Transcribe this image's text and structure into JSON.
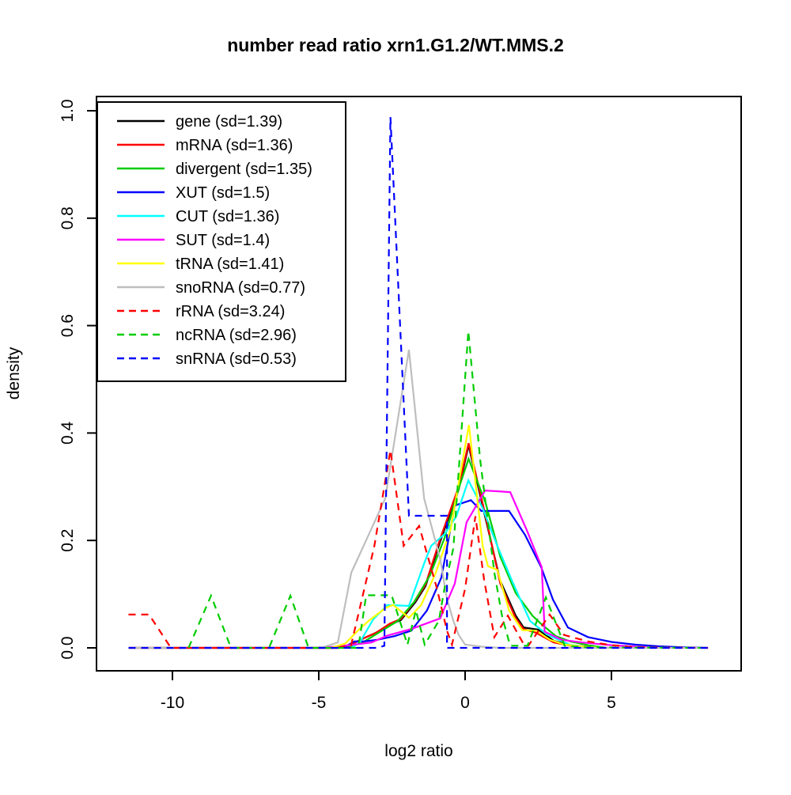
{
  "title": "number read ratio xrn1.G1.2/WT.MMS.2",
  "chart_data": {
    "type": "line",
    "title": "number read ratio xrn1.G1.2/WT.MMS.2",
    "xlabel": "log2 ratio",
    "ylabel": "density",
    "x_ticks": [
      -10,
      -5,
      0,
      5
    ],
    "y_ticks": [
      "0.0",
      "0.2",
      "0.4",
      "0.6",
      "0.8",
      "1.0"
    ],
    "xlim": [
      -12.6,
      9.4
    ],
    "ylim": [
      0,
      1.07
    ],
    "grid": false,
    "legend_position": "top-left",
    "series": [
      {
        "name": "gene",
        "label": "gene (sd=1.39)",
        "color": "#000000",
        "dash": false,
        "points": [
          [
            -11.5,
            0
          ],
          [
            -4.3,
            0
          ],
          [
            -3.9,
            0.006
          ],
          [
            -3.46,
            0.018
          ],
          [
            -3.05,
            0.028
          ],
          [
            -2.57,
            0.043
          ],
          [
            -2.19,
            0.052
          ],
          [
            -1.7,
            0.085
          ],
          [
            -1.35,
            0.115
          ],
          [
            -0.84,
            0.2
          ],
          [
            -0.22,
            0.295
          ],
          [
            0.12,
            0.377
          ],
          [
            0.66,
            0.25
          ],
          [
            1.2,
            0.125
          ],
          [
            1.73,
            0.06
          ],
          [
            2.0,
            0.038
          ],
          [
            2.5,
            0.034
          ],
          [
            3.03,
            0.013
          ],
          [
            3.6,
            0.005
          ],
          [
            4.2,
            0.002
          ],
          [
            4.8,
            0
          ]
        ]
      },
      {
        "name": "mRNA",
        "label": "mRNA (sd=1.36)",
        "color": "#FF0000",
        "dash": false,
        "points": [
          [
            -11.5,
            0
          ],
          [
            -4.3,
            0
          ],
          [
            -3.9,
            0.006
          ],
          [
            -3.46,
            0.018
          ],
          [
            -3.05,
            0.028
          ],
          [
            -2.57,
            0.045
          ],
          [
            -2.19,
            0.054
          ],
          [
            -1.7,
            0.088
          ],
          [
            -1.35,
            0.118
          ],
          [
            -0.84,
            0.205
          ],
          [
            -0.22,
            0.3
          ],
          [
            0.12,
            0.381
          ],
          [
            0.66,
            0.255
          ],
          [
            1.2,
            0.12
          ],
          [
            1.73,
            0.055
          ],
          [
            2.0,
            0.035
          ],
          [
            2.43,
            0.028
          ],
          [
            3.03,
            0.01
          ],
          [
            3.6,
            0.004
          ],
          [
            4.3,
            0.001
          ],
          [
            4.9,
            0
          ]
        ]
      },
      {
        "name": "divergent",
        "label": "divergent (sd=1.35)",
        "color": "#00CD00",
        "dash": false,
        "points": [
          [
            -4.1,
            0
          ],
          [
            -3.5,
            0.01
          ],
          [
            -2.9,
            0.03
          ],
          [
            -2.3,
            0.05
          ],
          [
            -1.75,
            0.085
          ],
          [
            -1.2,
            0.135
          ],
          [
            -0.7,
            0.205
          ],
          [
            -0.2,
            0.3
          ],
          [
            0.12,
            0.352
          ],
          [
            0.7,
            0.27
          ],
          [
            1.2,
            0.17
          ],
          [
            1.73,
            0.102
          ],
          [
            2.3,
            0.06
          ],
          [
            2.57,
            0.046
          ],
          [
            3.1,
            0.022
          ],
          [
            3.6,
            0.012
          ],
          [
            4.2,
            0.005
          ],
          [
            4.8,
            0
          ]
        ]
      },
      {
        "name": "XUT",
        "label": "XUT (sd=1.5)",
        "color": "#0000FF",
        "dash": false,
        "points": [
          [
            -4.6,
            0
          ],
          [
            -4.1,
            0.002
          ],
          [
            -3.78,
            0.012
          ],
          [
            -3.46,
            0.012
          ],
          [
            -3.0,
            0.015
          ],
          [
            -2.4,
            0.022
          ],
          [
            -1.84,
            0.032
          ],
          [
            -1.3,
            0.07
          ],
          [
            -0.81,
            0.131
          ],
          [
            -0.35,
            0.265
          ],
          [
            0.2,
            0.275
          ],
          [
            0.55,
            0.255
          ],
          [
            1.5,
            0.255
          ],
          [
            2.05,
            0.21
          ],
          [
            2.6,
            0.15
          ],
          [
            3.0,
            0.09
          ],
          [
            3.51,
            0.038
          ],
          [
            4.2,
            0.02
          ],
          [
            5.0,
            0.011
          ],
          [
            5.8,
            0.006
          ],
          [
            6.6,
            0.003
          ],
          [
            7.5,
            0.001
          ],
          [
            8.3,
            0
          ]
        ]
      },
      {
        "name": "CUT",
        "label": "CUT (sd=1.36)",
        "color": "#00FFFF",
        "dash": false,
        "points": [
          [
            -3.9,
            0
          ],
          [
            -3.6,
            0.01
          ],
          [
            -3.14,
            0.053
          ],
          [
            -2.65,
            0.08
          ],
          [
            -1.92,
            0.078
          ],
          [
            -1.38,
            0.16
          ],
          [
            -1.16,
            0.19
          ],
          [
            -0.7,
            0.212
          ],
          [
            -0.3,
            0.245
          ],
          [
            0.11,
            0.312
          ],
          [
            0.6,
            0.26
          ],
          [
            1.1,
            0.19
          ],
          [
            1.6,
            0.125
          ],
          [
            2.22,
            0.05
          ],
          [
            2.8,
            0.025
          ],
          [
            3.57,
            0.006
          ],
          [
            4.3,
            0
          ]
        ]
      },
      {
        "name": "SUT",
        "label": "SUT (sd=1.4)",
        "color": "#FF00FF",
        "dash": false,
        "points": [
          [
            -4.9,
            0
          ],
          [
            -4.3,
            0.003
          ],
          [
            -3.8,
            0.006
          ],
          [
            -3.2,
            0.01
          ],
          [
            -2.65,
            0.023
          ],
          [
            -1.84,
            0.035
          ],
          [
            -0.85,
            0.055
          ],
          [
            -0.35,
            0.12
          ],
          [
            0.05,
            0.234
          ],
          [
            0.68,
            0.293
          ],
          [
            1.54,
            0.29
          ],
          [
            2.1,
            0.22
          ],
          [
            2.62,
            0.15
          ],
          [
            2.72,
            0.03
          ],
          [
            3.3,
            0.015
          ],
          [
            4.0,
            0.01
          ],
          [
            5.0,
            0.005
          ],
          [
            5.9,
            0.002
          ],
          [
            6.5,
            0
          ]
        ]
      },
      {
        "name": "tRNA",
        "label": "tRNA (sd=1.41)",
        "color": "#FFFF00",
        "dash": false,
        "points": [
          [
            -4.6,
            0
          ],
          [
            -4.1,
            0.008
          ],
          [
            -3.7,
            0.03
          ],
          [
            -3.3,
            0.05
          ],
          [
            -2.7,
            0.075
          ],
          [
            -2.46,
            0.08
          ],
          [
            -1.92,
            0.056
          ],
          [
            -1.5,
            0.08
          ],
          [
            -1.0,
            0.14
          ],
          [
            -0.5,
            0.22
          ],
          [
            0.13,
            0.415
          ],
          [
            0.6,
            0.19
          ],
          [
            0.78,
            0.152
          ],
          [
            1.1,
            0.145
          ],
          [
            1.5,
            0.07
          ],
          [
            1.95,
            0.033
          ],
          [
            2.43,
            0.032
          ],
          [
            2.9,
            0.015
          ],
          [
            3.4,
            0.006
          ],
          [
            4.1,
            0.002
          ],
          [
            4.7,
            0
          ]
        ]
      },
      {
        "name": "snoRNA",
        "label": "snoRNA (sd=0.77)",
        "color": "#BEBEBE",
        "dash": false,
        "points": [
          [
            -11.5,
            0
          ],
          [
            -5.2,
            0
          ],
          [
            -4.8,
            0.002
          ],
          [
            -4.35,
            0.01
          ],
          [
            -3.89,
            0.14
          ],
          [
            -3.3,
            0.21
          ],
          [
            -2.73,
            0.278
          ],
          [
            -1.92,
            0.555
          ],
          [
            -1.4,
            0.278
          ],
          [
            -0.84,
            0.163
          ],
          [
            -0.62,
            0.091
          ],
          [
            -0.4,
            0.05
          ],
          [
            -0.22,
            0.024
          ],
          [
            0.0,
            0.006
          ],
          [
            0.6,
            0.002
          ],
          [
            1.2,
            0
          ],
          [
            8.3,
            0
          ]
        ]
      },
      {
        "name": "rRNA",
        "label": "rRNA (sd=3.24)",
        "color": "#FF0000",
        "dash": true,
        "points": [
          [
            -11.5,
            0.062
          ],
          [
            -10.8,
            0.062
          ],
          [
            -10.05,
            0
          ],
          [
            -9.5,
            0
          ],
          [
            -4.5,
            0
          ],
          [
            -3.9,
            0.004
          ],
          [
            -3.4,
            0.12
          ],
          [
            -3.1,
            0.19
          ],
          [
            -2.55,
            0.368
          ],
          [
            -2.1,
            0.19
          ],
          [
            -1.57,
            0.227
          ],
          [
            -0.97,
            0.112
          ],
          [
            -0.62,
            0.032
          ],
          [
            -0.45,
            0.006
          ],
          [
            0.0,
            0.11
          ],
          [
            0.35,
            0.245
          ],
          [
            0.65,
            0.127
          ],
          [
            1.0,
            0.02
          ],
          [
            1.46,
            0.06
          ],
          [
            2.03,
            0.004
          ],
          [
            2.16,
            0.004
          ],
          [
            2.89,
            0.062
          ],
          [
            3.38,
            0.024
          ],
          [
            4.2,
            0.012
          ],
          [
            5.0,
            0.005
          ],
          [
            5.6,
            0.002
          ],
          [
            6.2,
            0.001
          ],
          [
            8.3,
            0
          ]
        ]
      },
      {
        "name": "ncRNA",
        "label": "ncRNA (sd=2.96)",
        "color": "#00CD00",
        "dash": true,
        "points": [
          [
            -9.45,
            0
          ],
          [
            -8.68,
            0.097
          ],
          [
            -8.0,
            0
          ],
          [
            -6.7,
            0
          ],
          [
            -5.97,
            0.097
          ],
          [
            -5.35,
            0
          ],
          [
            -3.65,
            0
          ],
          [
            -3.38,
            0.098
          ],
          [
            -2.51,
            0.098
          ],
          [
            -1.97,
            0.006
          ],
          [
            -1.68,
            0.07
          ],
          [
            -1.38,
            0.006
          ],
          [
            -0.9,
            0.05
          ],
          [
            -0.7,
            0.112
          ],
          [
            -0.4,
            0.186
          ],
          [
            0.11,
            0.59
          ],
          [
            0.51,
            0.352
          ],
          [
            1.0,
            0.14
          ],
          [
            1.27,
            0.057
          ],
          [
            1.54,
            0.004
          ],
          [
            2.13,
            0.004
          ],
          [
            2.76,
            0.094
          ],
          [
            3.4,
            0.004
          ],
          [
            4.1,
            0.001
          ],
          [
            8.3,
            0
          ]
        ]
      },
      {
        "name": "snRNA",
        "label": "snRNA (sd=0.53)",
        "color": "#0000FF",
        "dash": true,
        "points": [
          [
            -11.5,
            0
          ],
          [
            -3.0,
            0
          ],
          [
            -2.76,
            0.004
          ],
          [
            -2.55,
            0.988
          ],
          [
            -1.92,
            0.246
          ],
          [
            -0.62,
            0.246
          ],
          [
            -0.62,
            0
          ],
          [
            8.3,
            0
          ]
        ]
      }
    ]
  }
}
